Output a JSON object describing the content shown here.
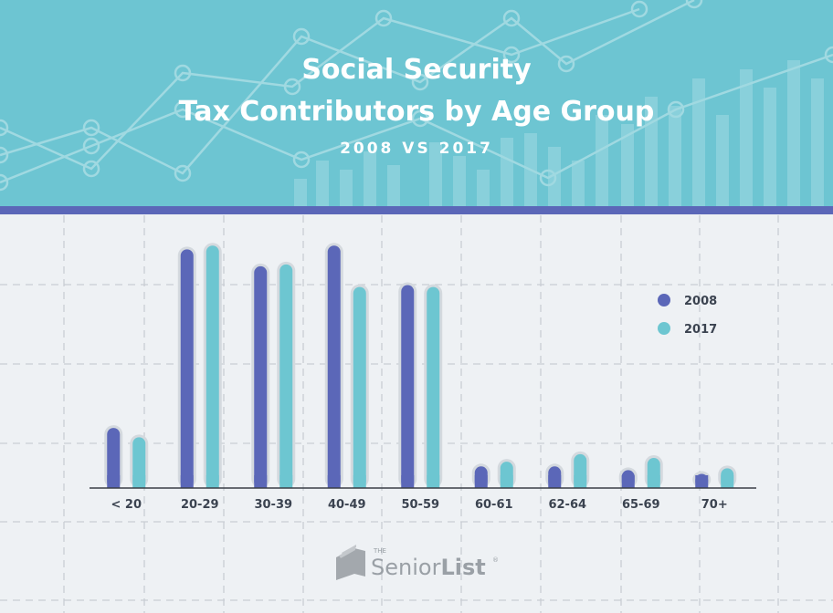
{
  "header": {
    "title_line1": "Social Security",
    "title_line2": "Tax Contributors by Age Group",
    "subtitle": "2008 VS 2017"
  },
  "colors": {
    "header_bg": "#6dc5d2",
    "header_stripe": "#5b67b8",
    "series_2008": "#5b67b8",
    "series_2017": "#6dc6d1",
    "background": "#eef1f4"
  },
  "chart_data": {
    "type": "bar",
    "categories": [
      "< 20",
      "20-29",
      "30-39",
      "40-49",
      "50-59",
      "60-61",
      "62-64",
      "65-69",
      "70+"
    ],
    "series": [
      {
        "name": "2008",
        "values": [
          64,
          254,
          236,
          258,
          216,
          23,
          23,
          19,
          15
        ]
      },
      {
        "name": "2017",
        "values": [
          54,
          258,
          238,
          214,
          214,
          28,
          36,
          32,
          21
        ]
      }
    ],
    "ylim": [
      0,
      300
    ],
    "grid": true,
    "legend_position": "right"
  },
  "legend": {
    "items": [
      {
        "label": "2008",
        "color": "#5b67b8"
      },
      {
        "label": "2017",
        "color": "#6dc6d1"
      }
    ]
  },
  "logo": {
    "prefix": "THE",
    "word1": "Senior",
    "word2": "List",
    "mark": "®"
  }
}
